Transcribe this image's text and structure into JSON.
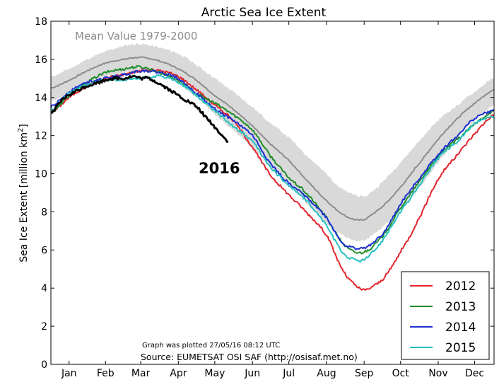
{
  "chart_data": {
    "type": "line",
    "title": "Arctic Sea Ice Extent",
    "ylabel": "Sea Ice Extent [million km",
    "ylabel_sup": "2",
    "ylabel_close": "]",
    "xlabel": "",
    "ylim": [
      0,
      18
    ],
    "xlim": [
      0,
      365
    ],
    "y_ticks": [
      0,
      2,
      4,
      6,
      8,
      10,
      12,
      14,
      16,
      18
    ],
    "x_ticks": [
      {
        "label": "Jan",
        "day": 15
      },
      {
        "label": "Feb",
        "day": 45
      },
      {
        "label": "Mar",
        "day": 74
      },
      {
        "label": "Apr",
        "day": 105
      },
      {
        "label": "May",
        "day": 135
      },
      {
        "label": "Jun",
        "day": 166
      },
      {
        "label": "Jul",
        "day": 196
      },
      {
        "label": "Aug",
        "day": 227
      },
      {
        "label": "Sep",
        "day": 258
      },
      {
        "label": "Oct",
        "day": 288
      },
      {
        "label": "Nov",
        "day": 319
      },
      {
        "label": "Dec",
        "day": 349
      }
    ],
    "grid": false,
    "mean": {
      "name": "Mean Value 1979-2000",
      "color": "#8c8c8c",
      "x": [
        0,
        15,
        30,
        45,
        60,
        74,
        90,
        105,
        120,
        135,
        150,
        166,
        180,
        196,
        210,
        227,
        240,
        250,
        258,
        265,
        275,
        288,
        300,
        319,
        335,
        349,
        365
      ],
      "y": [
        14.5,
        14.9,
        15.4,
        15.8,
        16.0,
        16.1,
        15.9,
        15.5,
        14.9,
        14.1,
        13.4,
        12.5,
        11.6,
        10.7,
        9.7,
        8.6,
        7.9,
        7.6,
        7.6,
        7.9,
        8.4,
        9.3,
        10.3,
        11.8,
        12.9,
        13.7,
        14.4
      ],
      "band_upper": [
        15.1,
        15.5,
        16.0,
        16.4,
        16.7,
        16.8,
        16.6,
        16.3,
        15.7,
        15.0,
        14.3,
        13.5,
        12.7,
        11.9,
        11.0,
        10.0,
        9.2,
        8.9,
        8.8,
        9.1,
        9.7,
        10.6,
        11.5,
        12.8,
        13.6,
        14.3,
        15.0
      ],
      "band_lower": [
        13.8,
        14.2,
        14.7,
        15.1,
        15.3,
        15.4,
        15.2,
        14.7,
        14.0,
        13.1,
        12.3,
        11.4,
        10.4,
        9.4,
        8.5,
        7.4,
        6.8,
        6.5,
        6.5,
        6.8,
        7.3,
        8.1,
        9.0,
        10.6,
        11.9,
        12.8,
        13.6
      ]
    },
    "series": [
      {
        "name": "2012",
        "color": "#e3242b",
        "x": [
          0,
          15,
          30,
          45,
          60,
          74,
          90,
          105,
          120,
          135,
          150,
          166,
          180,
          196,
          210,
          227,
          240,
          250,
          258,
          265,
          275,
          288,
          300,
          319,
          335,
          349,
          365
        ],
        "y": [
          13.2,
          14.0,
          14.6,
          15.0,
          15.2,
          15.4,
          15.4,
          15.1,
          14.4,
          13.6,
          12.8,
          11.4,
          10.0,
          8.9,
          8.0,
          6.8,
          5.0,
          4.2,
          3.9,
          4.1,
          4.6,
          5.9,
          7.3,
          9.7,
          11.0,
          12.1,
          13.1
        ]
      },
      {
        "name": "2013",
        "color": "#1e8c2a",
        "x": [
          0,
          15,
          30,
          45,
          60,
          74,
          90,
          105,
          120,
          135,
          150,
          166,
          180,
          196,
          210,
          227,
          240,
          250,
          258,
          265,
          275,
          288,
          300,
          319,
          335,
          349,
          365
        ],
        "y": [
          13.2,
          14.1,
          14.8,
          15.3,
          15.5,
          15.6,
          15.3,
          14.9,
          14.2,
          13.7,
          13.1,
          12.3,
          11.0,
          9.8,
          9.0,
          7.7,
          6.4,
          5.9,
          5.9,
          6.2,
          6.9,
          8.2,
          9.3,
          10.9,
          11.8,
          12.6,
          13.3
        ]
      },
      {
        "name": "2014",
        "color": "#1c2fd1",
        "x": [
          0,
          15,
          30,
          45,
          60,
          74,
          90,
          105,
          120,
          135,
          150,
          166,
          180,
          196,
          210,
          227,
          240,
          250,
          258,
          265,
          275,
          288,
          300,
          319,
          335,
          349,
          365
        ],
        "y": [
          13.5,
          14.3,
          14.8,
          15.0,
          15.2,
          15.4,
          15.3,
          15.0,
          14.2,
          13.4,
          12.8,
          12.0,
          10.6,
          9.5,
          8.8,
          7.7,
          6.4,
          6.1,
          6.1,
          6.4,
          7.0,
          8.4,
          9.5,
          11.0,
          12.0,
          12.9,
          13.3
        ]
      },
      {
        "name": "2015",
        "color": "#27c0c0",
        "x": [
          0,
          15,
          30,
          45,
          60,
          74,
          90,
          105,
          120,
          135,
          150,
          166,
          180,
          196,
          210,
          227,
          240,
          250,
          258,
          265,
          275,
          288,
          300,
          319,
          335,
          349,
          365
        ],
        "y": [
          13.3,
          14.2,
          14.7,
          14.9,
          14.9,
          15.0,
          15.1,
          14.8,
          14.1,
          13.3,
          12.5,
          11.7,
          10.4,
          9.4,
          8.6,
          7.3,
          5.9,
          5.5,
          5.5,
          5.9,
          6.7,
          8.0,
          9.1,
          10.8,
          11.7,
          12.6,
          13.0
        ]
      }
    ],
    "current": {
      "name": "2016",
      "color": "#000000",
      "x": [
        0,
        10,
        20,
        30,
        40,
        50,
        60,
        68,
        74,
        80,
        90,
        100,
        110,
        120,
        130,
        140,
        146
      ],
      "y": [
        13.2,
        13.9,
        14.3,
        14.6,
        14.8,
        15.0,
        15.0,
        15.1,
        15.0,
        15.0,
        14.7,
        14.3,
        13.9,
        13.5,
        12.8,
        12.1,
        11.7
      ]
    },
    "annotations": [
      {
        "text": "Graph was plotted 27/05/16 08:12 UTC"
      },
      {
        "text": "Source: EUMETSAT OSI SAF (http://osisaf.met.no)"
      }
    ],
    "legend_placement": "bottom-right"
  }
}
